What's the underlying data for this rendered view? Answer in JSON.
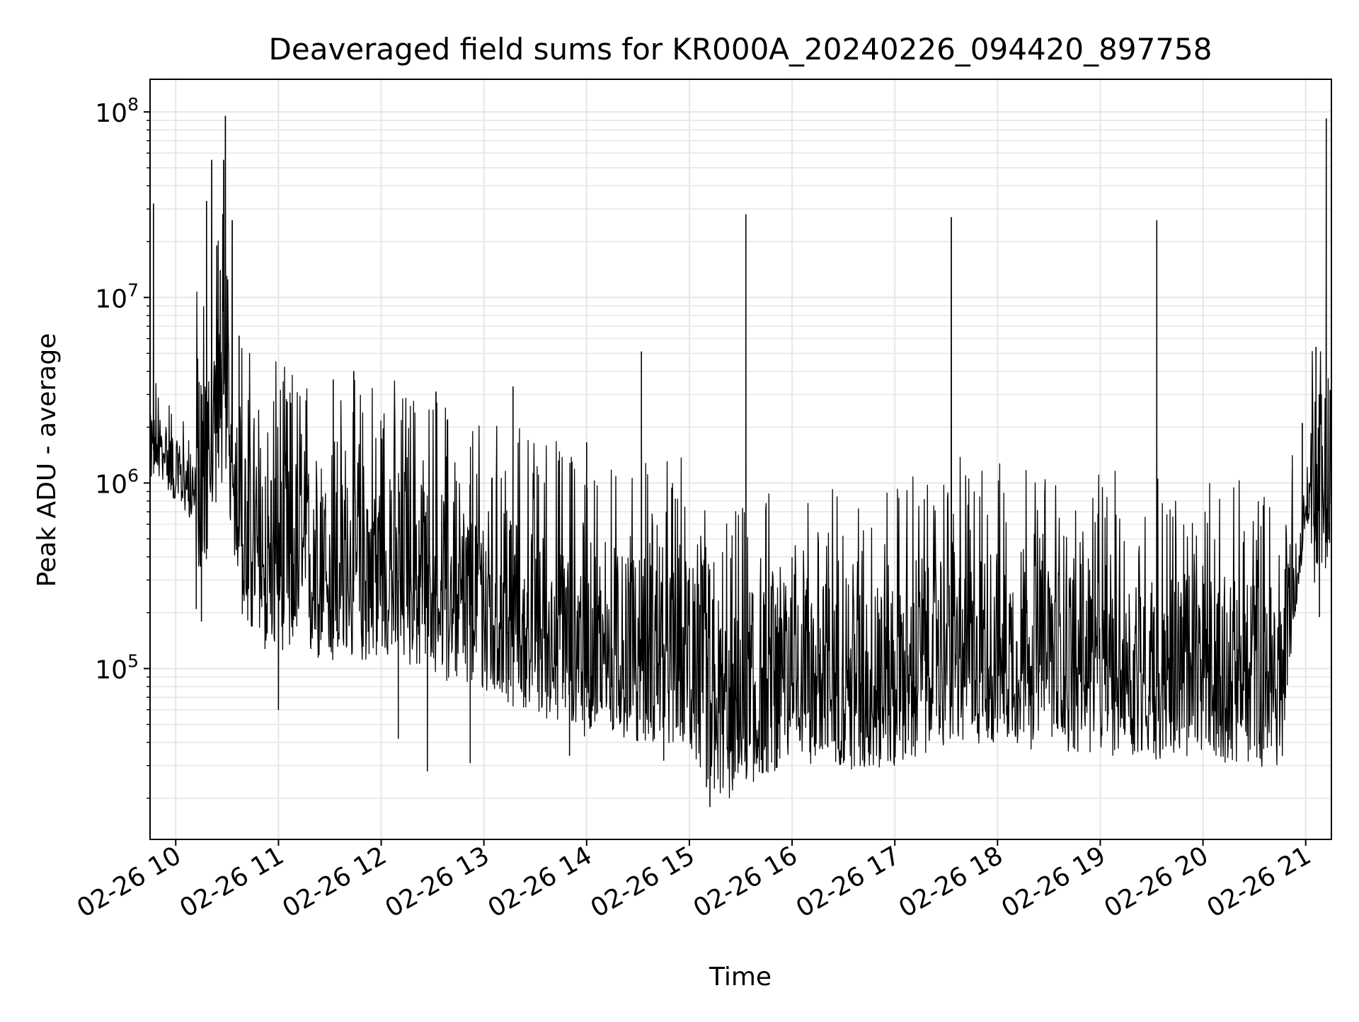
{
  "chart_data": {
    "type": "line",
    "title": "Deaveraged field sums for KR000A_20240226_094420_897758",
    "xlabel": "Time",
    "ylabel": "Peak ADU - average",
    "xscale": "time",
    "yscale": "log",
    "xlim": [
      "2024-02-26T09:45",
      "2024-02-26T21:15"
    ],
    "ylim": [
      12000,
      150000000
    ],
    "grid": true,
    "line_color": "#000000",
    "x_ticks": [
      "02-26 10",
      "02-26 11",
      "02-26 12",
      "02-26 13",
      "02-26 14",
      "02-26 15",
      "02-26 16",
      "02-26 17",
      "02-26 18",
      "02-26 19",
      "02-26 20",
      "02-26 21"
    ],
    "x_tick_times": [
      "2024-02-26T10:00",
      "2024-02-26T11:00",
      "2024-02-26T12:00",
      "2024-02-26T13:00",
      "2024-02-26T14:00",
      "2024-02-26T15:00",
      "2024-02-26T16:00",
      "2024-02-26T17:00",
      "2024-02-26T18:00",
      "2024-02-26T19:00",
      "2024-02-26T20:00",
      "2024-02-26T21:00"
    ],
    "y_ticks": [
      {
        "value": 100000,
        "base": "10",
        "exp": "5"
      },
      {
        "value": 1000000,
        "base": "10",
        "exp": "6"
      },
      {
        "value": 10000000,
        "base": "10",
        "exp": "7"
      },
      {
        "value": 100000000,
        "base": "10",
        "exp": "8"
      }
    ],
    "series": [
      {
        "x": [
          "2024-02-26T09:45",
          "2024-02-26T09:52",
          "2024-02-26T10:00",
          "2024-02-26T10:10",
          "2024-02-26T10:18",
          "2024-02-26T10:22",
          "2024-02-26T10:28",
          "2024-02-26T10:33",
          "2024-02-26T10:40",
          "2024-02-26T10:50",
          "2024-02-26T11:00",
          "2024-02-26T11:30",
          "2024-02-26T12:00",
          "2024-02-26T12:30",
          "2024-02-26T13:00",
          "2024-02-26T13:30",
          "2024-02-26T14:00",
          "2024-02-26T14:30",
          "2024-02-26T15:00",
          "2024-02-26T15:15",
          "2024-02-26T15:30",
          "2024-02-26T16:00",
          "2024-02-26T16:30",
          "2024-02-26T17:00",
          "2024-02-26T17:30",
          "2024-02-26T18:00",
          "2024-02-26T18:30",
          "2024-02-26T19:00",
          "2024-02-26T19:30",
          "2024-02-26T20:00",
          "2024-02-26T20:30",
          "2024-02-26T20:45",
          "2024-02-26T20:55",
          "2024-02-26T21:00",
          "2024-02-26T21:10",
          "2024-02-26T21:15"
        ],
        "y": [
          1500000,
          1500000,
          1100000,
          900000,
          1000000,
          2000000,
          3000000,
          1300000,
          450000,
          350000,
          360000,
          280000,
          320000,
          260000,
          200000,
          160000,
          120000,
          110000,
          110000,
          50000,
          60000,
          90000,
          80000,
          80000,
          110000,
          110000,
          100000,
          95000,
          90000,
          90000,
          85000,
          80000,
          300000,
          700000,
          900000,
          1000000
        ]
      }
    ],
    "spikes": [
      {
        "x": "2024-02-26T09:47",
        "y": 32000000
      },
      {
        "x": "2024-02-26T10:18",
        "y": 33000000
      },
      {
        "x": "2024-02-26T10:21",
        "y": 55000000
      },
      {
        "x": "2024-02-26T10:24",
        "y": 19000000
      },
      {
        "x": "2024-02-26T10:26",
        "y": 14000000
      },
      {
        "x": "2024-02-26T10:28",
        "y": 55000000
      },
      {
        "x": "2024-02-26T10:29",
        "y": 95000000
      },
      {
        "x": "2024-02-26T10:33",
        "y": 26000000
      },
      {
        "x": "2024-02-26T10:37",
        "y": 6200000
      },
      {
        "x": "2024-02-26T11:32",
        "y": 3600000
      },
      {
        "x": "2024-02-26T11:44",
        "y": 4000000
      },
      {
        "x": "2024-02-26T12:32",
        "y": 3100000
      },
      {
        "x": "2024-02-26T13:17",
        "y": 3300000
      },
      {
        "x": "2024-02-26T14:00",
        "y": 1650000
      },
      {
        "x": "2024-02-26T14:32",
        "y": 5100000
      },
      {
        "x": "2024-02-26T15:33",
        "y": 28000000
      },
      {
        "x": "2024-02-26T17:33",
        "y": 27000000
      },
      {
        "x": "2024-02-26T19:33",
        "y": 26000000
      },
      {
        "x": "2024-02-26T20:58",
        "y": 2100000
      },
      {
        "x": "2024-02-26T21:02",
        "y": 1000000
      },
      {
        "x": "2024-02-26T21:06",
        "y": 5400000
      },
      {
        "x": "2024-02-26T21:12",
        "y": 92000000
      }
    ],
    "dips": [
      {
        "x": "2024-02-26T10:12",
        "y": 210000
      },
      {
        "x": "2024-02-26T10:15",
        "y": 180000
      },
      {
        "x": "2024-02-26T11:00",
        "y": 60000
      },
      {
        "x": "2024-02-26T12:10",
        "y": 42000
      },
      {
        "x": "2024-02-26T12:27",
        "y": 28000
      },
      {
        "x": "2024-02-26T12:52",
        "y": 31000
      },
      {
        "x": "2024-02-26T13:50",
        "y": 34000
      },
      {
        "x": "2024-02-26T14:45",
        "y": 32000
      },
      {
        "x": "2024-02-26T15:10",
        "y": 23000
      },
      {
        "x": "2024-02-26T15:12",
        "y": 18000
      },
      {
        "x": "2024-02-26T15:25",
        "y": 26000
      },
      {
        "x": "2024-02-26T15:45",
        "y": 28000
      },
      {
        "x": "2024-02-26T16:30",
        "y": 33000
      },
      {
        "x": "2024-02-26T19:20",
        "y": 36000
      },
      {
        "x": "2024-02-26T20:40",
        "y": 45000
      },
      {
        "x": "2024-02-26T21:08",
        "y": 190000
      }
    ]
  }
}
